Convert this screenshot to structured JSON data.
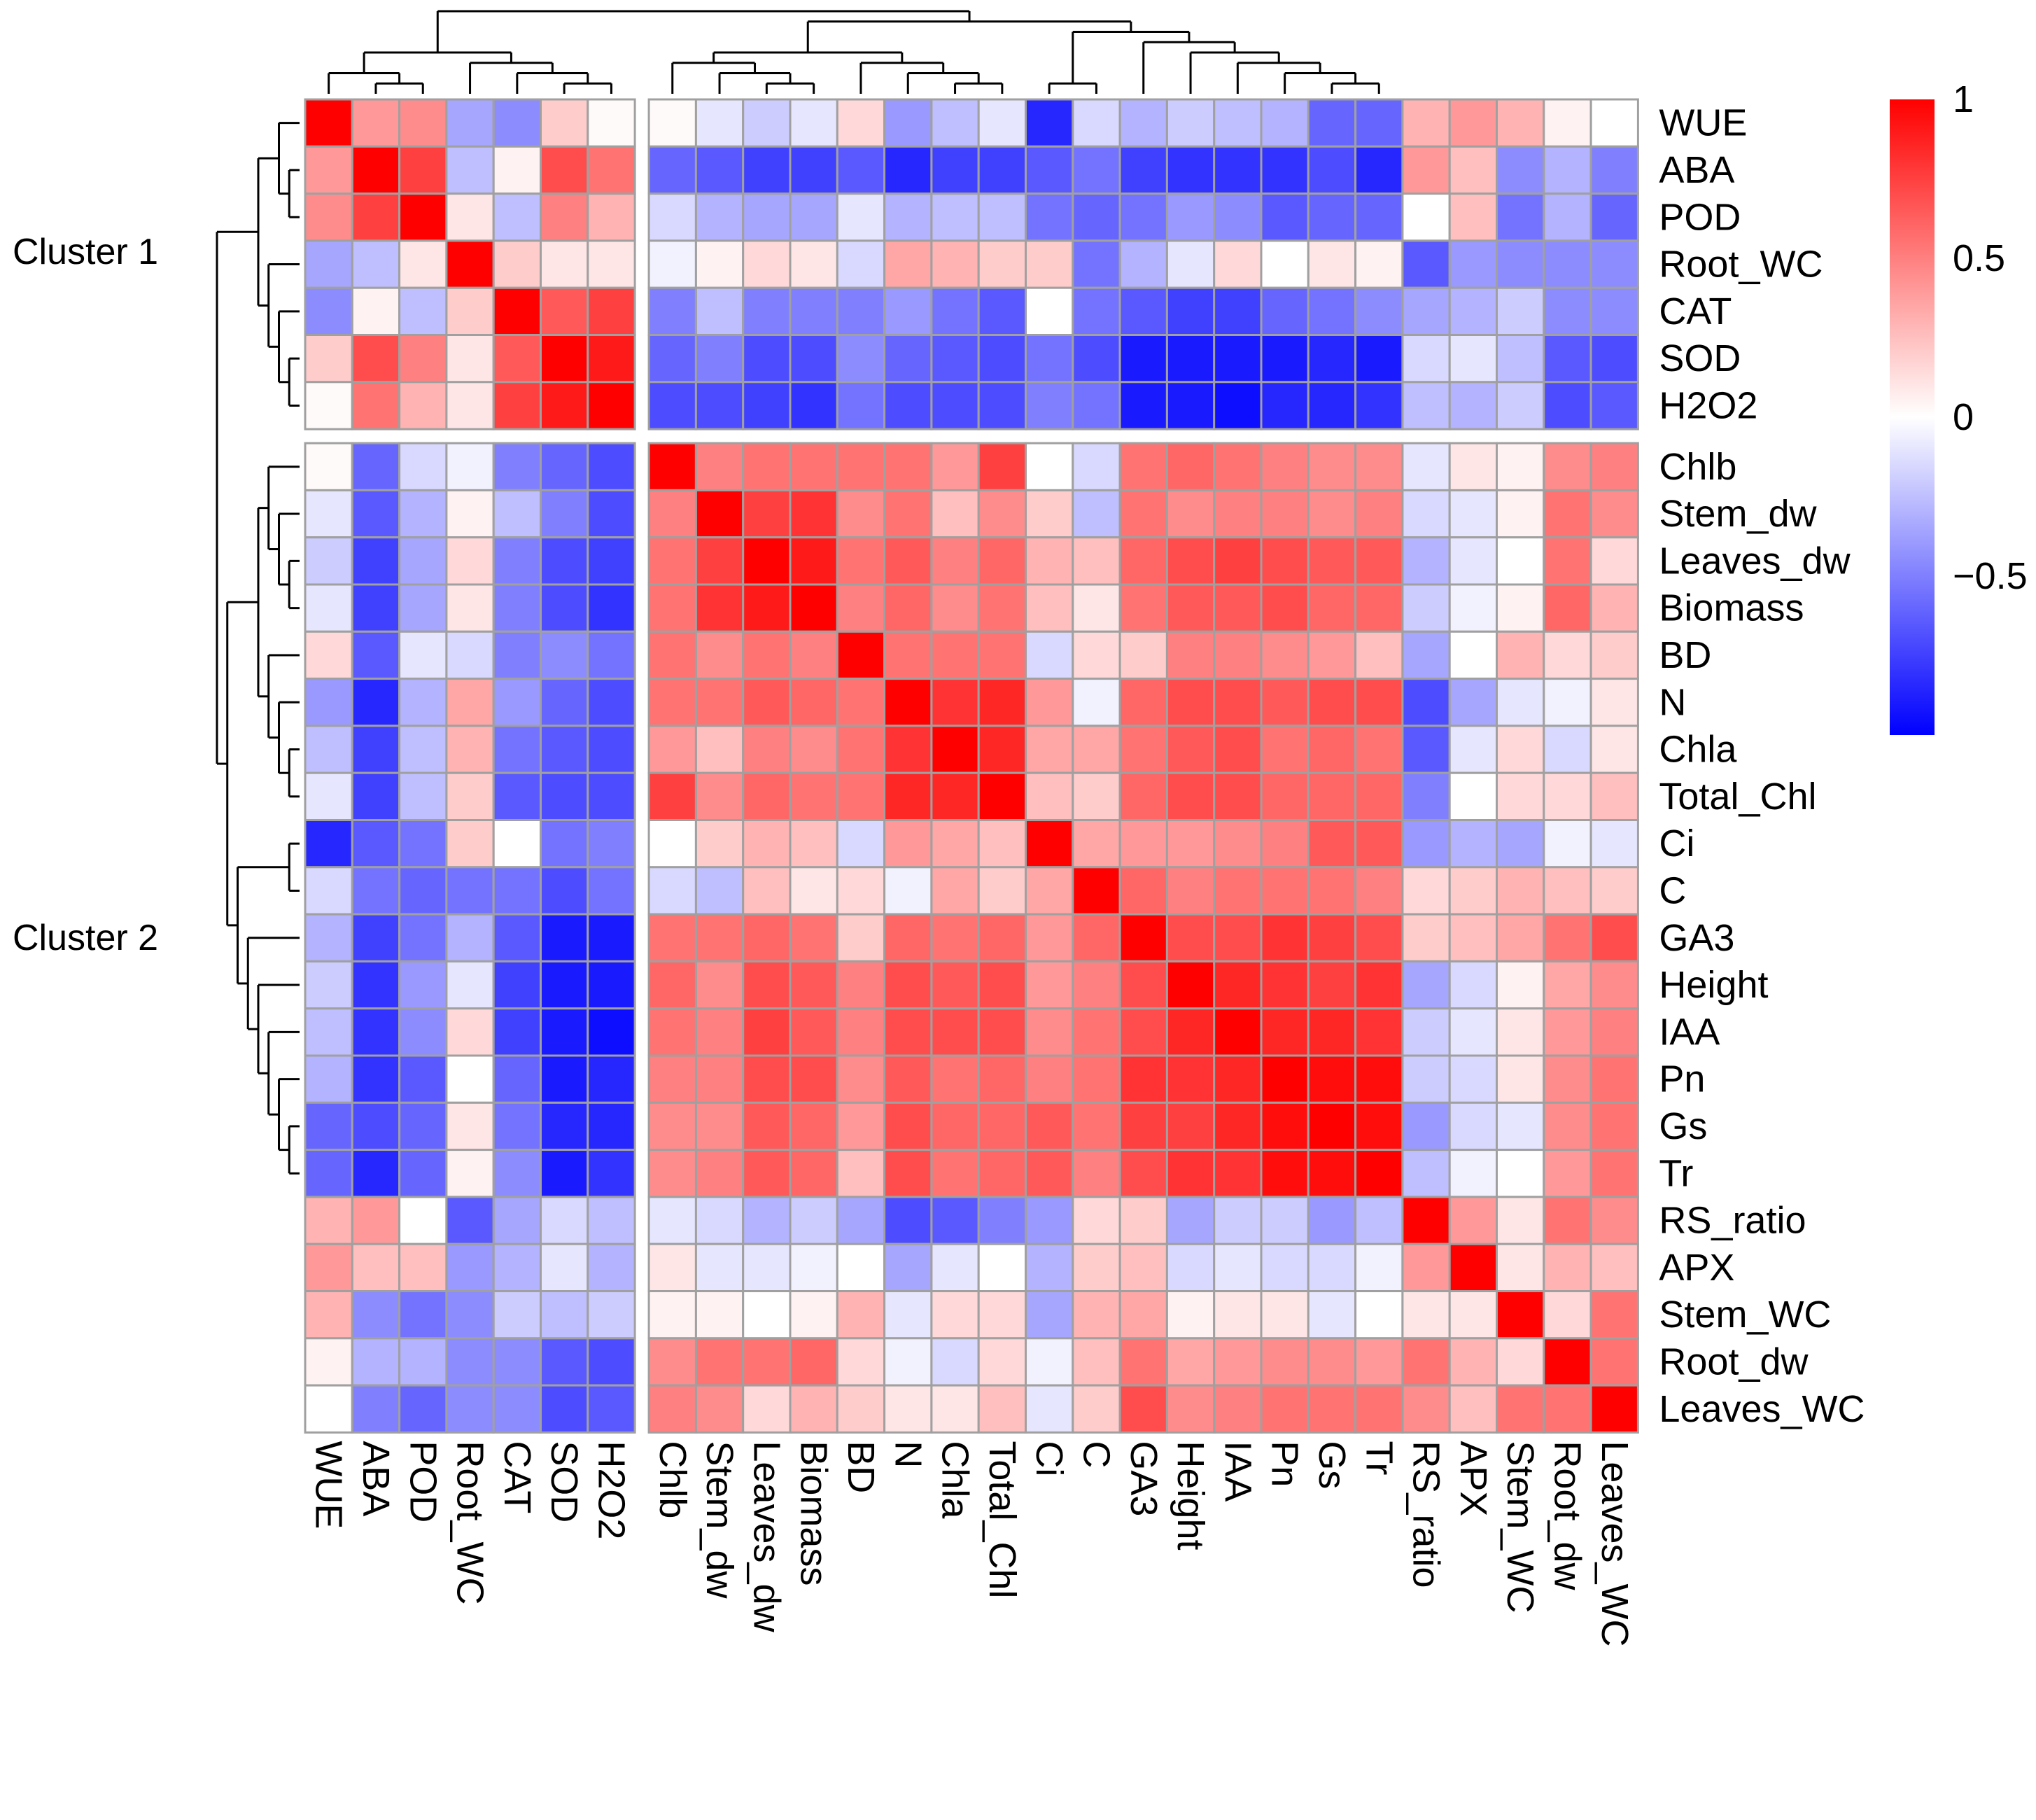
{
  "chart_data": {
    "type": "heatmap",
    "title": "",
    "variables": [
      "WUE",
      "ABA",
      "POD",
      "Root_WC",
      "CAT",
      "SOD",
      "H2O2",
      "Chlb",
      "Stem_dw",
      "Leaves_dw",
      "Biomass",
      "BD",
      "N",
      "Chla",
      "Total_Chl",
      "Ci",
      "C",
      "GA3",
      "Height",
      "IAA",
      "Pn",
      "Gs",
      "Tr",
      "RS_ratio",
      "APX",
      "Stem_WC",
      "Root_dw",
      "Leaves_WC"
    ],
    "row_labels": [
      "WUE",
      "ABA",
      "POD",
      "Root_WC",
      "CAT",
      "SOD",
      "H2O2",
      "Chlb",
      "Stem_dw",
      "Leaves_dw",
      "Biomass",
      "BD",
      "N",
      "Chla",
      "Total_Chl",
      "Ci",
      "C",
      "GA3",
      "Height",
      "IAA",
      "Pn",
      "Gs",
      "Tr",
      "RS_ratio",
      "APX",
      "Stem_WC",
      "Root_dw",
      "Leaves_WC"
    ],
    "col_labels": [
      "WUE",
      "ABA",
      "POD",
      "Root_WC",
      "CAT",
      "SOD",
      "H2O2",
      "Chlb",
      "Stem_dw",
      "Leaves_dw",
      "Biomass",
      "BD",
      "N",
      "Chla",
      "Total_Chl",
      "Ci",
      "C",
      "GA3",
      "Height",
      "IAA",
      "Pn",
      "Gs",
      "Tr",
      "RS_ratio",
      "APX",
      "Stem_WC",
      "Root_dw",
      "Leaves_WC"
    ],
    "clusters": [
      {
        "label": "Cluster 1",
        "members": [
          "WUE",
          "ABA",
          "POD",
          "Root_WC",
          "CAT",
          "SOD",
          "H2O2"
        ]
      },
      {
        "label": "Cluster 2",
        "members": [
          "Chlb",
          "Stem_dw",
          "Leaves_dw",
          "Biomass",
          "BD",
          "N",
          "Chla",
          "Total_Chl",
          "Ci",
          "C",
          "GA3",
          "Height",
          "IAA",
          "Pn",
          "Gs",
          "Tr",
          "RS_ratio",
          "APX",
          "Stem_WC",
          "Root_dw",
          "Leaves_WC"
        ]
      }
    ],
    "values": [
      [
        1.0,
        0.4,
        0.45,
        -0.35,
        -0.45,
        0.2,
        0.02,
        0.02,
        -0.1,
        -0.2,
        -0.1,
        0.15,
        -0.4,
        -0.25,
        -0.1,
        -0.85,
        -0.15,
        -0.3,
        -0.2,
        -0.25,
        -0.3,
        -0.6,
        -0.6,
        0.3,
        0.4,
        0.3,
        0.05,
        0.0
      ],
      [
        0.4,
        1.0,
        0.75,
        -0.25,
        0.05,
        0.7,
        0.55,
        -0.6,
        -0.65,
        -0.75,
        -0.75,
        -0.65,
        -0.85,
        -0.75,
        -0.75,
        -0.65,
        -0.55,
        -0.75,
        -0.8,
        -0.8,
        -0.8,
        -0.7,
        -0.85,
        0.4,
        0.25,
        -0.45,
        -0.3,
        -0.5
      ],
      [
        0.45,
        0.75,
        1.0,
        0.1,
        -0.25,
        0.5,
        0.3,
        -0.15,
        -0.3,
        -0.35,
        -0.35,
        -0.1,
        -0.3,
        -0.25,
        -0.25,
        -0.55,
        -0.6,
        -0.55,
        -0.4,
        -0.45,
        -0.65,
        -0.6,
        -0.6,
        0.0,
        0.25,
        -0.55,
        -0.3,
        -0.6
      ],
      [
        -0.35,
        -0.25,
        0.1,
        1.0,
        0.2,
        0.1,
        0.1,
        -0.05,
        0.05,
        0.15,
        0.1,
        -0.15,
        0.35,
        0.3,
        0.2,
        0.2,
        -0.55,
        -0.3,
        -0.1,
        0.15,
        0.0,
        0.1,
        0.05,
        -0.65,
        -0.4,
        -0.45,
        -0.45,
        -0.45
      ],
      [
        -0.45,
        0.05,
        -0.25,
        0.2,
        1.0,
        0.65,
        0.75,
        -0.5,
        -0.25,
        -0.5,
        -0.5,
        -0.5,
        -0.4,
        -0.55,
        -0.65,
        0.0,
        -0.55,
        -0.65,
        -0.75,
        -0.75,
        -0.6,
        -0.55,
        -0.45,
        -0.35,
        -0.3,
        -0.2,
        -0.45,
        -0.45
      ],
      [
        0.2,
        0.7,
        0.5,
        0.1,
        0.65,
        1.0,
        0.9,
        -0.6,
        -0.5,
        -0.7,
        -0.7,
        -0.45,
        -0.6,
        -0.65,
        -0.7,
        -0.55,
        -0.7,
        -0.9,
        -0.9,
        -0.9,
        -0.9,
        -0.85,
        -0.9,
        -0.15,
        -0.1,
        -0.25,
        -0.65,
        -0.7
      ],
      [
        0.02,
        0.55,
        0.3,
        0.1,
        0.75,
        0.9,
        1.0,
        -0.7,
        -0.7,
        -0.75,
        -0.8,
        -0.55,
        -0.7,
        -0.7,
        -0.7,
        -0.5,
        -0.55,
        -0.9,
        -0.9,
        -0.95,
        -0.85,
        -0.85,
        -0.8,
        -0.25,
        -0.3,
        -0.2,
        -0.7,
        -0.65
      ],
      [
        0.02,
        -0.6,
        -0.15,
        -0.05,
        -0.5,
        -0.6,
        -0.7,
        1.0,
        0.5,
        0.55,
        0.55,
        0.55,
        0.55,
        0.4,
        0.75,
        0.0,
        -0.15,
        0.55,
        0.6,
        0.55,
        0.5,
        0.45,
        0.45,
        -0.1,
        0.1,
        0.05,
        0.45,
        0.5
      ],
      [
        -0.1,
        -0.65,
        -0.3,
        0.05,
        -0.25,
        -0.5,
        -0.7,
        0.5,
        1.0,
        0.75,
        0.8,
        0.45,
        0.55,
        0.25,
        0.45,
        0.2,
        -0.25,
        0.55,
        0.45,
        0.5,
        0.5,
        0.45,
        0.5,
        -0.15,
        -0.1,
        0.05,
        0.55,
        0.45
      ],
      [
        -0.2,
        -0.75,
        -0.35,
        0.15,
        -0.5,
        -0.7,
        -0.75,
        0.55,
        0.75,
        1.0,
        0.9,
        0.55,
        0.65,
        0.5,
        0.6,
        0.3,
        0.25,
        0.6,
        0.7,
        0.75,
        0.7,
        0.65,
        0.65,
        -0.3,
        -0.1,
        0.0,
        0.55,
        0.15
      ],
      [
        -0.1,
        -0.75,
        -0.35,
        0.1,
        -0.5,
        -0.7,
        -0.8,
        0.55,
        0.8,
        0.9,
        1.0,
        0.5,
        0.6,
        0.45,
        0.55,
        0.25,
        0.1,
        0.55,
        0.65,
        0.65,
        0.7,
        0.6,
        0.6,
        -0.2,
        -0.05,
        0.05,
        0.6,
        0.3
      ],
      [
        0.15,
        -0.65,
        -0.1,
        -0.15,
        -0.5,
        -0.45,
        -0.55,
        0.55,
        0.45,
        0.55,
        0.5,
        1.0,
        0.55,
        0.55,
        0.55,
        -0.15,
        0.15,
        0.2,
        0.5,
        0.5,
        0.45,
        0.4,
        0.25,
        -0.35,
        0.0,
        0.3,
        0.15,
        0.2
      ],
      [
        -0.4,
        -0.85,
        -0.3,
        0.35,
        -0.4,
        -0.6,
        -0.7,
        0.55,
        0.55,
        0.65,
        0.6,
        0.55,
        1.0,
        0.8,
        0.85,
        0.4,
        -0.05,
        0.6,
        0.7,
        0.7,
        0.65,
        0.7,
        0.7,
        -0.7,
        -0.35,
        -0.1,
        -0.05,
        0.1
      ],
      [
        -0.25,
        -0.75,
        -0.25,
        0.3,
        -0.55,
        -0.65,
        -0.7,
        0.4,
        0.25,
        0.5,
        0.45,
        0.55,
        0.8,
        1.0,
        0.85,
        0.35,
        0.35,
        0.55,
        0.65,
        0.7,
        0.55,
        0.6,
        0.55,
        -0.65,
        -0.1,
        0.15,
        -0.15,
        0.1
      ],
      [
        -0.1,
        -0.75,
        -0.25,
        0.2,
        -0.65,
        -0.7,
        -0.7,
        0.75,
        0.45,
        0.6,
        0.55,
        0.55,
        0.85,
        0.85,
        1.0,
        0.25,
        0.2,
        0.6,
        0.7,
        0.7,
        0.6,
        0.6,
        0.6,
        -0.5,
        0.0,
        0.15,
        0.15,
        0.25
      ],
      [
        -0.85,
        -0.65,
        -0.55,
        0.2,
        0.0,
        -0.55,
        -0.5,
        0.0,
        0.2,
        0.3,
        0.25,
        -0.15,
        0.4,
        0.35,
        0.25,
        1.0,
        0.35,
        0.4,
        0.4,
        0.45,
        0.5,
        0.65,
        0.65,
        -0.4,
        -0.3,
        -0.35,
        -0.05,
        -0.1
      ],
      [
        -0.15,
        -0.55,
        -0.6,
        -0.55,
        -0.55,
        -0.7,
        -0.55,
        -0.15,
        -0.25,
        0.25,
        0.1,
        0.15,
        -0.05,
        0.35,
        0.2,
        0.35,
        1.0,
        0.6,
        0.5,
        0.55,
        0.55,
        0.55,
        0.5,
        0.15,
        0.2,
        0.3,
        0.25,
        0.2
      ],
      [
        -0.3,
        -0.75,
        -0.55,
        -0.3,
        -0.65,
        -0.9,
        -0.9,
        0.55,
        0.55,
        0.6,
        0.55,
        0.2,
        0.6,
        0.55,
        0.6,
        0.4,
        0.6,
        1.0,
        0.7,
        0.7,
        0.8,
        0.75,
        0.7,
        0.2,
        0.25,
        0.35,
        0.55,
        0.7
      ],
      [
        -0.2,
        -0.8,
        -0.4,
        -0.1,
        -0.75,
        -0.9,
        -0.9,
        0.6,
        0.45,
        0.7,
        0.65,
        0.5,
        0.7,
        0.65,
        0.7,
        0.4,
        0.5,
        0.7,
        1.0,
        0.85,
        0.8,
        0.75,
        0.8,
        -0.35,
        -0.15,
        0.05,
        0.35,
        0.45
      ],
      [
        -0.25,
        -0.8,
        -0.45,
        0.15,
        -0.75,
        -0.9,
        -0.95,
        0.55,
        0.5,
        0.75,
        0.65,
        0.5,
        0.7,
        0.7,
        0.7,
        0.45,
        0.55,
        0.7,
        0.85,
        1.0,
        0.85,
        0.85,
        0.8,
        -0.2,
        -0.1,
        0.1,
        0.4,
        0.5
      ],
      [
        -0.3,
        -0.8,
        -0.65,
        0.0,
        -0.6,
        -0.9,
        -0.85,
        0.5,
        0.5,
        0.7,
        0.7,
        0.45,
        0.65,
        0.55,
        0.6,
        0.5,
        0.55,
        0.8,
        0.8,
        0.85,
        1.0,
        0.95,
        0.95,
        -0.2,
        -0.15,
        0.1,
        0.45,
        0.55
      ],
      [
        -0.6,
        -0.7,
        -0.6,
        0.1,
        -0.55,
        -0.85,
        -0.85,
        0.45,
        0.45,
        0.65,
        0.6,
        0.4,
        0.7,
        0.6,
        0.6,
        0.65,
        0.55,
        0.75,
        0.75,
        0.85,
        0.95,
        1.0,
        0.95,
        -0.4,
        -0.15,
        -0.1,
        0.45,
        0.55
      ],
      [
        -0.6,
        -0.85,
        -0.6,
        0.05,
        -0.45,
        -0.9,
        -0.8,
        0.45,
        0.5,
        0.65,
        0.6,
        0.25,
        0.7,
        0.55,
        0.6,
        0.65,
        0.5,
        0.7,
        0.8,
        0.8,
        0.95,
        0.95,
        1.0,
        -0.25,
        -0.05,
        0.0,
        0.4,
        0.55
      ],
      [
        0.3,
        0.4,
        0.0,
        -0.65,
        -0.35,
        -0.15,
        -0.25,
        -0.1,
        -0.15,
        -0.3,
        -0.2,
        -0.35,
        -0.7,
        -0.65,
        -0.5,
        -0.4,
        0.15,
        0.2,
        -0.35,
        -0.2,
        -0.2,
        -0.4,
        -0.25,
        1.0,
        0.4,
        0.1,
        0.55,
        0.45
      ],
      [
        0.4,
        0.25,
        0.25,
        -0.4,
        -0.3,
        -0.1,
        -0.3,
        0.1,
        -0.1,
        -0.1,
        -0.05,
        0.0,
        -0.35,
        -0.1,
        0.0,
        -0.3,
        0.2,
        0.25,
        -0.15,
        -0.1,
        -0.15,
        -0.15,
        -0.05,
        0.4,
        1.0,
        0.1,
        0.3,
        0.25
      ],
      [
        0.3,
        -0.45,
        -0.55,
        -0.45,
        -0.2,
        -0.25,
        -0.2,
        0.05,
        0.05,
        0.0,
        0.05,
        0.3,
        -0.1,
        0.15,
        0.15,
        -0.35,
        0.3,
        0.35,
        0.05,
        0.1,
        0.1,
        -0.1,
        0.0,
        0.1,
        0.1,
        1.0,
        0.15,
        0.55
      ],
      [
        0.05,
        -0.3,
        -0.3,
        -0.45,
        -0.45,
        -0.65,
        -0.7,
        0.45,
        0.55,
        0.55,
        0.6,
        0.15,
        -0.05,
        -0.15,
        0.15,
        -0.05,
        0.25,
        0.55,
        0.35,
        0.4,
        0.45,
        0.45,
        0.4,
        0.55,
        0.3,
        0.15,
        1.0,
        0.55
      ],
      [
        0.0,
        -0.5,
        -0.6,
        -0.45,
        -0.45,
        -0.7,
        -0.65,
        0.5,
        0.45,
        0.15,
        0.3,
        0.2,
        0.1,
        0.1,
        0.25,
        -0.1,
        0.2,
        0.7,
        0.45,
        0.5,
        0.55,
        0.55,
        0.55,
        0.45,
        0.25,
        0.55,
        0.55,
        1.0
      ]
    ],
    "color_scale": {
      "min": -1,
      "max": 1,
      "low": "#0000ff",
      "mid": "#ffffff",
      "high": "#ff0000",
      "ticks": [
        1,
        0.5,
        0,
        -0.5
      ],
      "tick_labels": [
        "1",
        "0.5",
        "0",
        "−0.5"
      ]
    },
    "legend_position": "top-right",
    "grid_color": "#a0a0a0"
  }
}
